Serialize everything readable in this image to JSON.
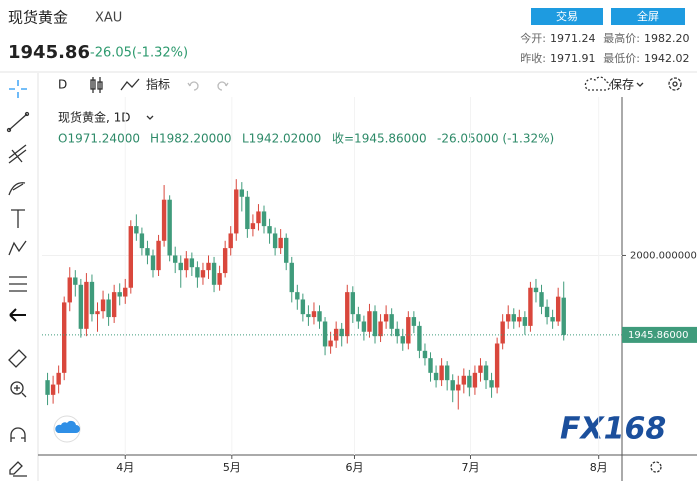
{
  "header": {
    "name": "现货黄金",
    "symbol": "XAU",
    "trade_button": "交易",
    "fullscreen_button": "全屏",
    "price": "1945.86",
    "change": "-26.05(-1.32%)",
    "quote": [
      {
        "label": "今开:",
        "value": "1971.24"
      },
      {
        "label": "最高价:",
        "value": "1982.20"
      },
      {
        "label": "昨收:",
        "value": "1971.91"
      },
      {
        "label": "最低价:",
        "value": "1942.02"
      }
    ]
  },
  "toolbar": {
    "interval": "D",
    "indicators": "指标",
    "save": "保存"
  },
  "legend": {
    "title": "现货黄金, 1D",
    "open": "O1971.24000",
    "high": "H1982.20000",
    "low": "L1942.02000",
    "close": "收=1945.86000",
    "change": "-26.05000 (-1.32%)"
  },
  "watermark": "FX168",
  "chart_data": {
    "type": "candlestick",
    "up_color": "#d9473c",
    "down_color": "#3f9b7b",
    "grid": true,
    "xlim": [
      -1,
      103.5
    ],
    "xticks": [
      {
        "value": 14,
        "label": "4月"
      },
      {
        "value": 33.2,
        "label": "5月"
      },
      {
        "value": 55.3,
        "label": "6月"
      },
      {
        "value": 76.2,
        "label": "7月"
      },
      {
        "value": 99.3,
        "label": "8月"
      }
    ],
    "ylim": [
      1864,
      2108
    ],
    "yticks": [
      {
        "value": 2000,
        "label": "2000.000000"
      }
    ],
    "last_price": {
      "value": 1945.86,
      "label": "1945.86000"
    },
    "open": [
      1915,
      1905,
      1912,
      1920,
      1968,
      1985,
      1980,
      1950,
      1982,
      1960,
      1962,
      1970,
      1958,
      1975,
      1972,
      1978,
      2020,
      2015,
      2005,
      2000,
      1990,
      2010,
      2038,
      2000,
      1995,
      1990,
      1998,
      1992,
      1985,
      1990,
      1995,
      1980,
      1988,
      2005,
      2015,
      2045,
      2040,
      2018,
      2022,
      2030,
      2020,
      2015,
      2005,
      2012,
      1995,
      1975,
      1970,
      1960,
      1958,
      1962,
      1955,
      1938,
      1942,
      1950,
      1945,
      1975,
      1960,
      1955,
      1948,
      1962,
      1945,
      1955,
      1960,
      1950,
      1945,
      1940,
      1958,
      1952,
      1935,
      1930,
      1920,
      1915,
      1925,
      1915,
      1908,
      1912,
      1918,
      1910,
      1920,
      1925,
      1915,
      1910,
      1940,
      1955,
      1960,
      1955,
      1958,
      1952,
      1978,
      1975,
      1965,
      1958,
      1955,
      1971.24
    ],
    "high": [
      1920,
      1918,
      1925,
      1972,
      1992,
      1990,
      1984,
      1988,
      1987,
      1968,
      1976,
      1974,
      1980,
      1981,
      1984,
      2024,
      2028,
      2019,
      2010,
      2004,
      2014,
      2048,
      2041,
      2006,
      2000,
      2003,
      2002,
      1996,
      1995,
      2000,
      1999,
      1993,
      2010,
      2020,
      2052,
      2050,
      2044,
      2028,
      2035,
      2034,
      2025,
      2019,
      2018,
      2015,
      1999,
      1980,
      1974,
      1966,
      1968,
      1966,
      1958,
      1948,
      1955,
      1954,
      1980,
      1979,
      1965,
      1959,
      1967,
      1966,
      1960,
      1966,
      1964,
      1955,
      1950,
      1962,
      1962,
      1955,
      1940,
      1934,
      1925,
      1930,
      1928,
      1919,
      1918,
      1923,
      1922,
      1925,
      1930,
      1928,
      1920,
      1944,
      1960,
      1966,
      1964,
      1963,
      1962,
      1982,
      1984,
      1980,
      1970,
      1963,
      1978,
      1982.2
    ],
    "low": [
      1898,
      1899,
      1906,
      1915,
      1962,
      1972,
      1944,
      1945,
      1955,
      1948,
      1957,
      1952,
      1954,
      1966,
      1967,
      1974,
      2010,
      2000,
      1994,
      1985,
      1986,
      2006,
      1996,
      1988,
      1978,
      1985,
      1986,
      1978,
      1980,
      1984,
      1975,
      1976,
      1985,
      2000,
      2010,
      2030,
      2012,
      2013,
      2017,
      2015,
      2008,
      2000,
      2001,
      1990,
      1968,
      1963,
      1955,
      1952,
      1953,
      1950,
      1932,
      1933,
      1937,
      1938,
      1940,
      1954,
      1950,
      1942,
      1944,
      1940,
      1941,
      1950,
      1945,
      1940,
      1935,
      1936,
      1947,
      1930,
      1925,
      1914,
      1910,
      1911,
      1908,
      1900,
      1895,
      1906,
      1904,
      1905,
      1914,
      1909,
      1903,
      1906,
      1936,
      1950,
      1950,
      1951,
      1946,
      1948,
      1968,
      1960,
      1953,
      1950,
      1952,
      1942.02
    ],
    "close": [
      1905,
      1912,
      1920,
      1968,
      1985,
      1980,
      1950,
      1982,
      1960,
      1962,
      1970,
      1958,
      1975,
      1972,
      1978,
      2020,
      2015,
      2005,
      2000,
      1990,
      2010,
      2038,
      2000,
      1995,
      1990,
      1998,
      1992,
      1985,
      1990,
      1995,
      1980,
      1988,
      2005,
      2015,
      2045,
      2040,
      2018,
      2022,
      2030,
      2020,
      2015,
      2005,
      2012,
      1995,
      1975,
      1970,
      1960,
      1958,
      1962,
      1955,
      1938,
      1942,
      1950,
      1945,
      1975,
      1960,
      1955,
      1948,
      1962,
      1945,
      1955,
      1960,
      1950,
      1945,
      1940,
      1958,
      1952,
      1935,
      1930,
      1920,
      1915,
      1925,
      1915,
      1908,
      1912,
      1918,
      1910,
      1920,
      1925,
      1915,
      1910,
      1940,
      1955,
      1960,
      1955,
      1958,
      1952,
      1978,
      1975,
      1965,
      1958,
      1955,
      1971.91,
      1945.86
    ]
  }
}
